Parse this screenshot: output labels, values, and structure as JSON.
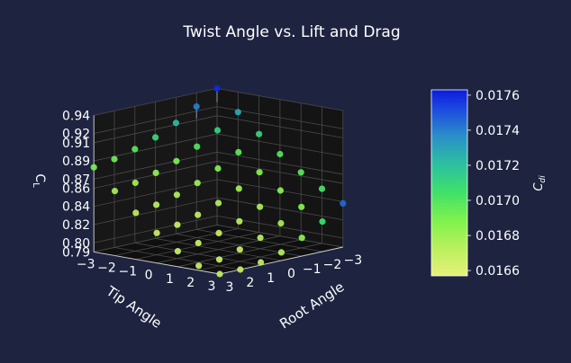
{
  "chart_data": {
    "type": "scatter3d",
    "title": "Twist Angle vs. Lift and Drag",
    "xlabel": "Tip Angle",
    "ylabel": "Root Angle",
    "zlabel": "C_L",
    "colorbar_label": "C_di",
    "x_ticks": [
      "−3",
      "−2",
      "−1",
      "0",
      "1",
      "2",
      "3"
    ],
    "y_ticks": [
      "−3",
      "−2",
      "−1",
      "0",
      "1",
      "2",
      "3"
    ],
    "z_ticks": [
      "0.79",
      "0.80",
      "0.82",
      "0.84",
      "0.86",
      "0.87",
      "0.89",
      "0.91",
      "0.92",
      "0.94"
    ],
    "colorbar_ticks": [
      "0.0166",
      "0.0168",
      "0.0170",
      "0.0172",
      "0.0174",
      "0.0176"
    ],
    "xlim": [
      -3,
      3
    ],
    "ylim": [
      -3,
      3
    ],
    "zlim": [
      0.79,
      0.94
    ],
    "clim": [
      0.01657,
      0.01763
    ],
    "colormap": "terrain-like (yellow to green to blue)",
    "grid": true,
    "background": "#1e2340",
    "pane_color": "#141414",
    "x_values": [
      -3,
      -2,
      -1,
      0,
      1,
      2,
      3
    ],
    "y_values": [
      -3,
      -2,
      -1,
      0,
      1,
      2,
      3
    ],
    "cl_grid": [
      [
        0.94,
        0.925,
        0.912,
        0.901,
        0.893,
        0.887,
        0.883
      ],
      [
        0.918,
        0.903,
        0.89,
        0.879,
        0.871,
        0.865,
        0.861
      ],
      [
        0.898,
        0.883,
        0.87,
        0.859,
        0.851,
        0.845,
        0.841
      ],
      [
        0.88,
        0.865,
        0.852,
        0.841,
        0.833,
        0.827,
        0.823
      ],
      [
        0.864,
        0.849,
        0.836,
        0.825,
        0.817,
        0.811,
        0.807
      ],
      [
        0.85,
        0.835,
        0.822,
        0.811,
        0.803,
        0.797,
        0.795
      ],
      [
        0.838,
        0.823,
        0.81,
        0.799,
        0.793,
        0.79,
        0.79
      ]
    ],
    "cdi_grid": [
      [
        0.0176,
        0.0174,
        0.01722,
        0.01708,
        0.01698,
        0.01692,
        0.0169
      ],
      [
        0.01728,
        0.01712,
        0.017,
        0.0169,
        0.01683,
        0.01679,
        0.01678
      ],
      [
        0.0171,
        0.01697,
        0.01688,
        0.0168,
        0.01675,
        0.01672,
        0.01671
      ],
      [
        0.017,
        0.01688,
        0.0168,
        0.01674,
        0.0167,
        0.01668,
        0.01667
      ],
      [
        0.01698,
        0.01685,
        0.01677,
        0.01671,
        0.01668,
        0.01666,
        0.01666
      ],
      [
        0.01703,
        0.01688,
        0.01678,
        0.01672,
        0.01668,
        0.01666,
        0.01667
      ],
      [
        0.01745,
        0.01705,
        0.01685,
        0.01674,
        0.01669,
        0.01668,
        0.0167
      ]
    ]
  }
}
